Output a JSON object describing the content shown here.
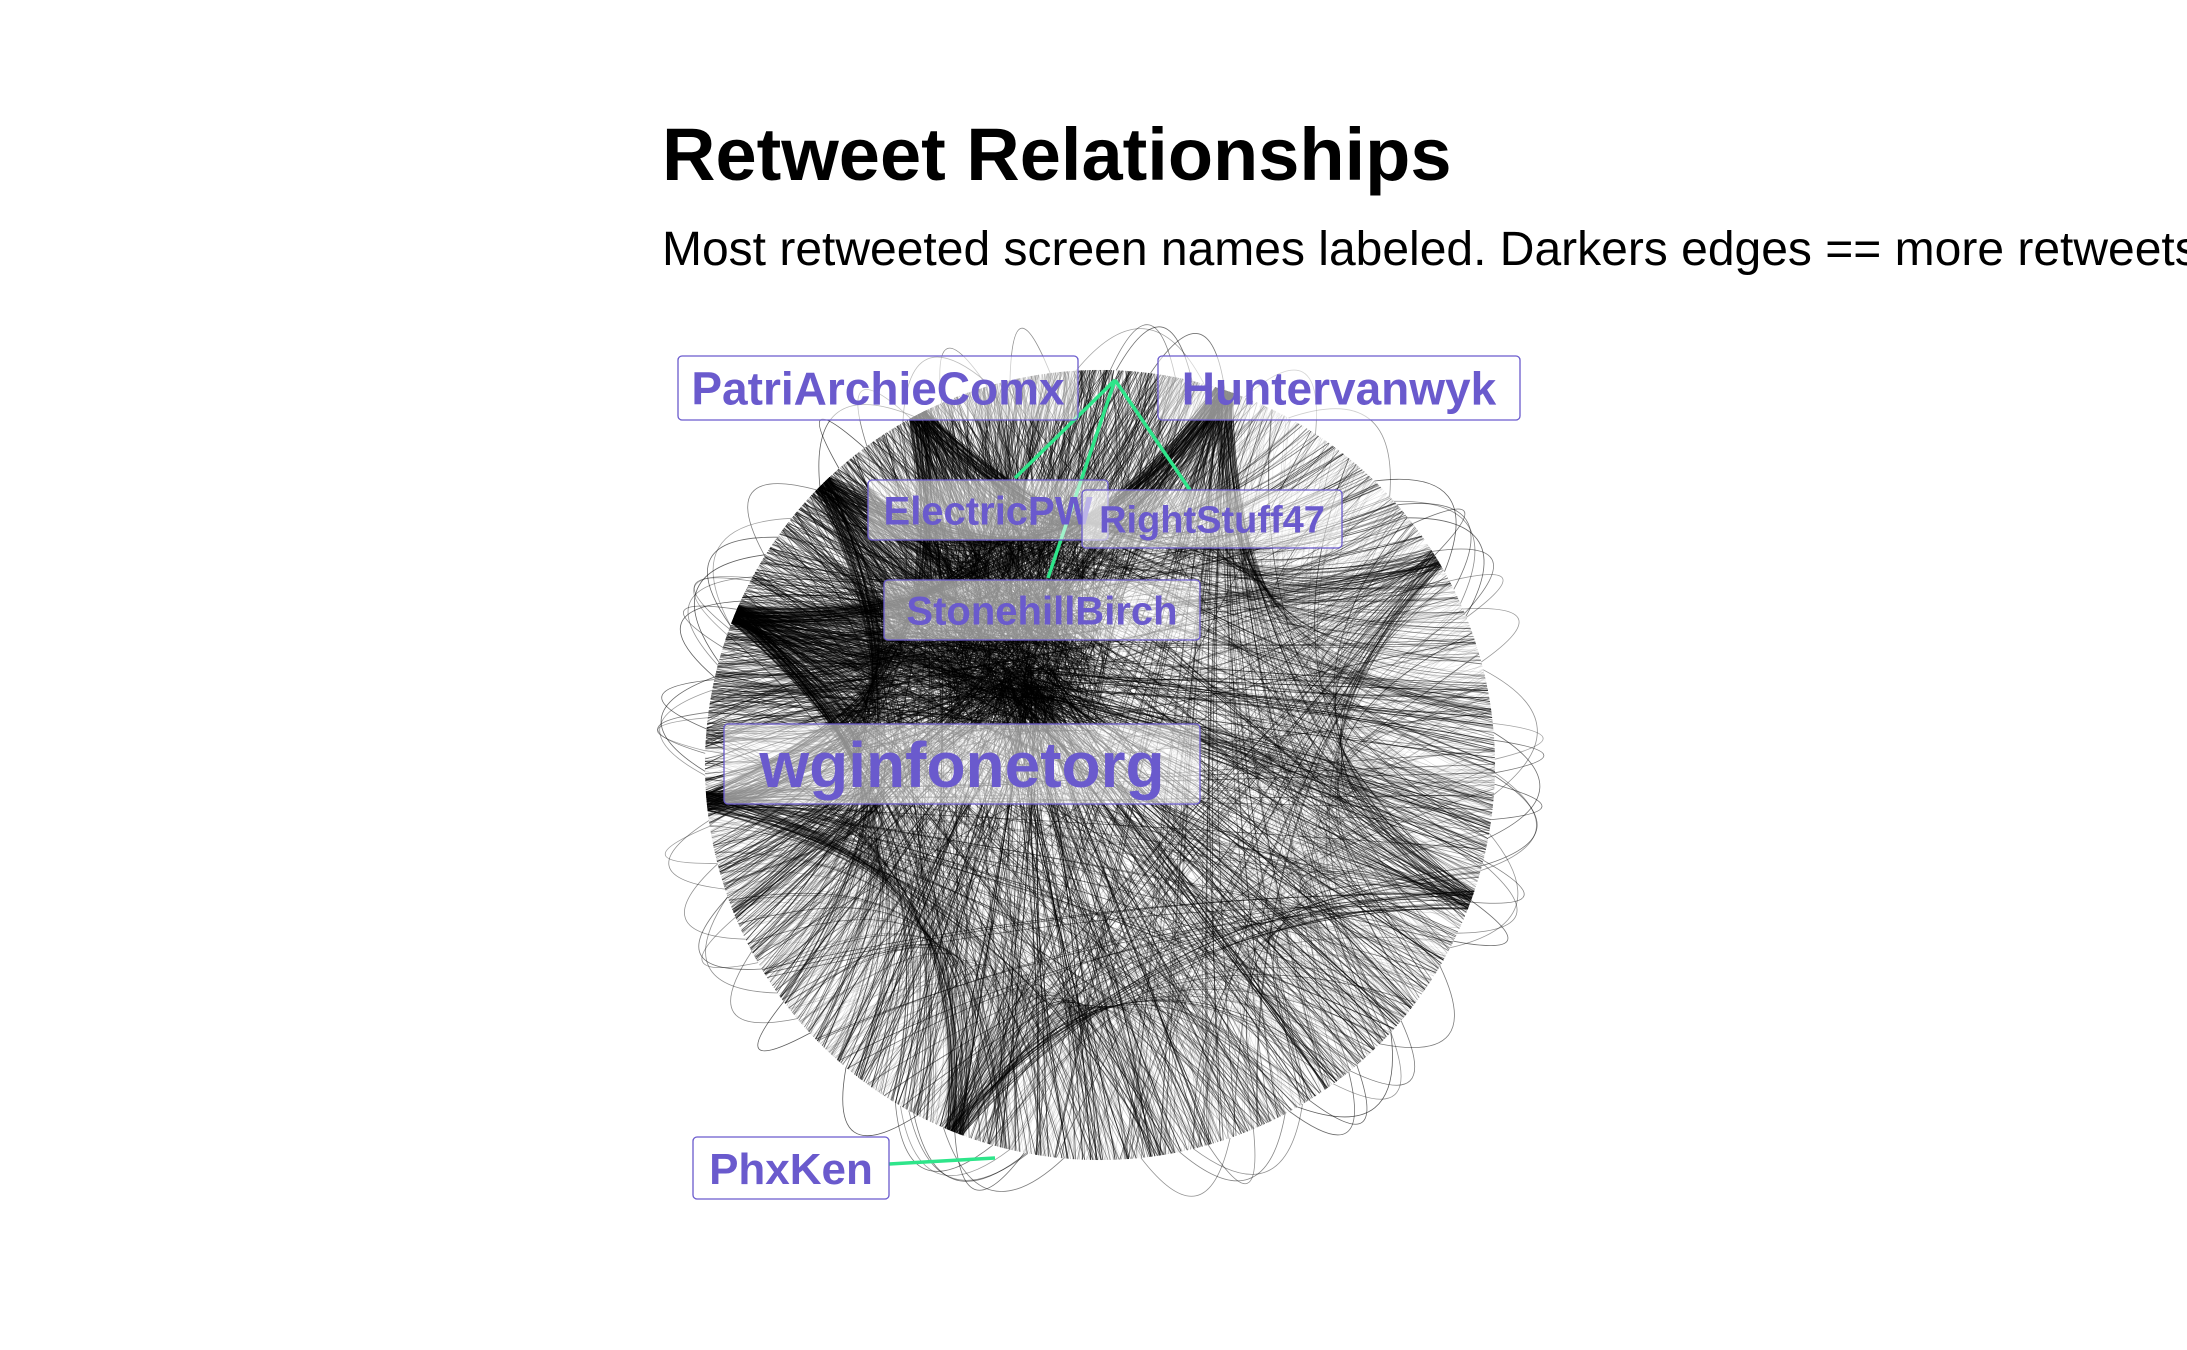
{
  "header": {
    "title": "Retweet Relationships",
    "subtitle": "Most retweeted screen names labeled. Darkers edges == more retweets."
  },
  "chart_data": {
    "type": "network",
    "layout": "circular",
    "label_color": "#6a5acd",
    "leader_line_color": "#2ee58a",
    "edge_color": "#000000",
    "labeled_nodes": [
      {
        "name": "PatriArchieComx"
      },
      {
        "name": "Huntervanwyk"
      },
      {
        "name": "ElectricPW"
      },
      {
        "name": "RightStuff47"
      },
      {
        "name": "StonehillBirch"
      },
      {
        "name": "wginfonetorg"
      },
      {
        "name": "PhxKen"
      }
    ]
  }
}
